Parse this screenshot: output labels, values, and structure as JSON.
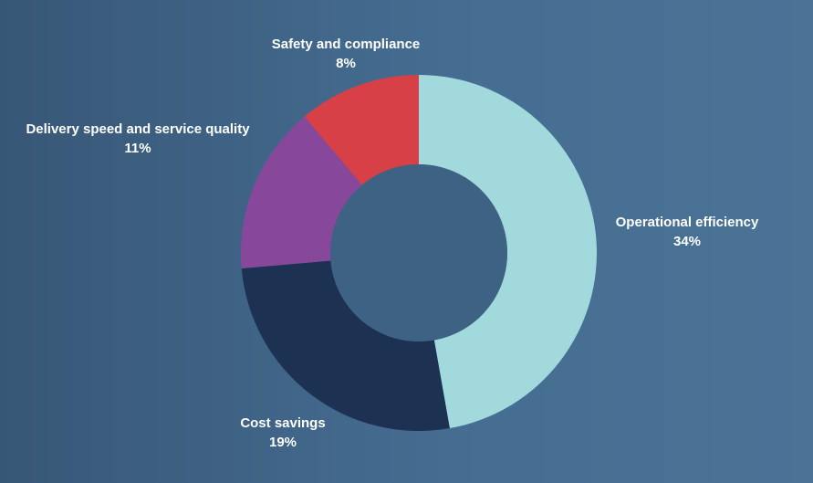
{
  "chart_data": {
    "type": "pie",
    "donut": true,
    "start_angle_deg": 0,
    "direction": "clockwise",
    "categories": [
      "Operational efficiency",
      "Cost savings",
      "Delivery speed and service quality",
      "Safety and compliance"
    ],
    "values": [
      34,
      19,
      11,
      8
    ],
    "value_labels": [
      "34%",
      "19%",
      "11%",
      "8%"
    ],
    "colors": [
      "#a1d9dc",
      "#1d3152",
      "#87489c",
      "#d64046"
    ],
    "center_color": "#3e6283",
    "legend": "none",
    "title": ""
  }
}
